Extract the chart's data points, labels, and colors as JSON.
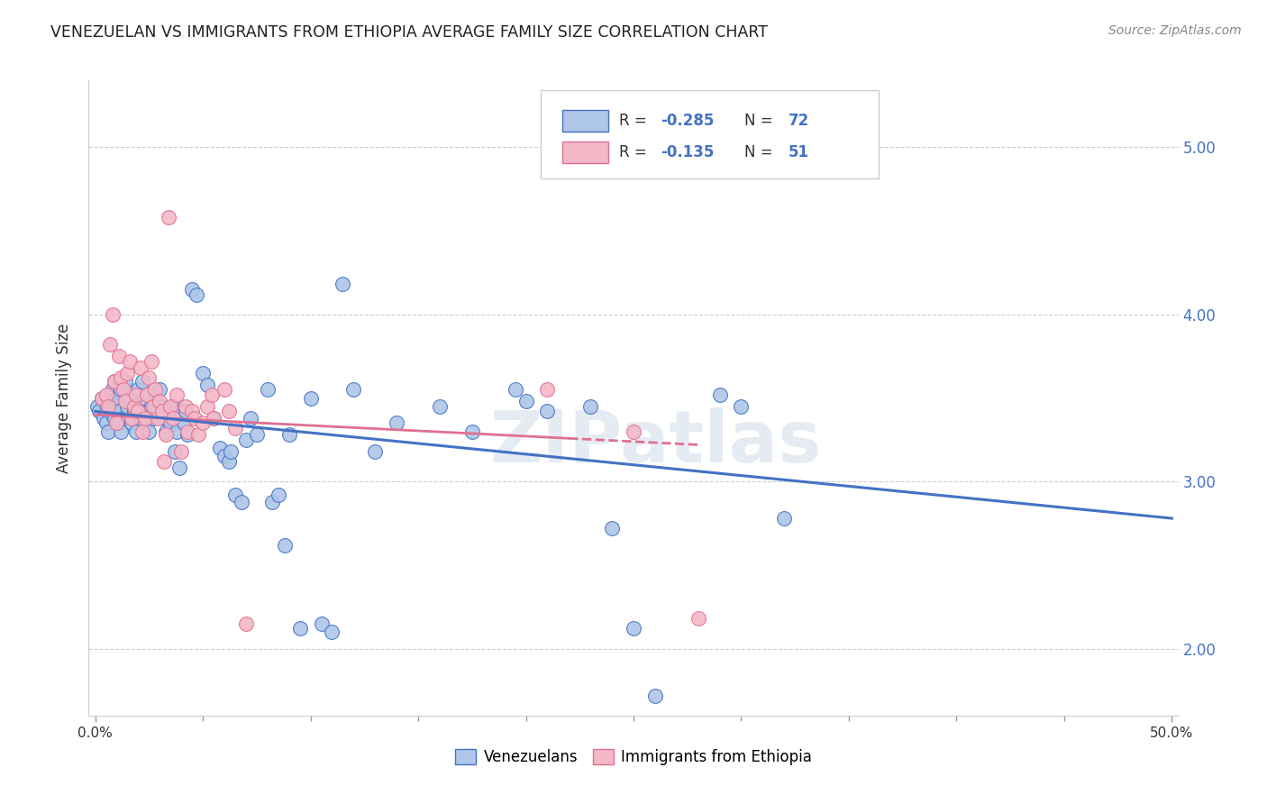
{
  "title": "VENEZUELAN VS IMMIGRANTS FROM ETHIOPIA AVERAGE FAMILY SIZE CORRELATION CHART",
  "source": "Source: ZipAtlas.com",
  "ylabel": "Average Family Size",
  "ylim": [
    1.6,
    5.4
  ],
  "xlim": [
    -0.003,
    0.503
  ],
  "watermark": "ZIPatlas",
  "venezuelan_color": "#aec6e8",
  "ethiopia_color": "#f4b8c8",
  "venezuelan_edge_color": "#4472c4",
  "ethiopia_edge_color": "#e07090",
  "venezuelan_line_color": "#4472c4",
  "ethiopia_line_color": "#e07090",
  "venezuelan_scatter": [
    [
      0.001,
      3.45
    ],
    [
      0.002,
      3.42
    ],
    [
      0.003,
      3.5
    ],
    [
      0.004,
      3.38
    ],
    [
      0.005,
      3.46
    ],
    [
      0.005,
      3.35
    ],
    [
      0.006,
      3.48
    ],
    [
      0.006,
      3.3
    ],
    [
      0.007,
      3.52
    ],
    [
      0.007,
      3.45
    ],
    [
      0.008,
      3.4
    ],
    [
      0.008,
      3.55
    ],
    [
      0.009,
      3.38
    ],
    [
      0.009,
      3.6
    ],
    [
      0.01,
      3.45
    ],
    [
      0.01,
      3.5
    ],
    [
      0.011,
      3.35
    ],
    [
      0.011,
      3.42
    ],
    [
      0.012,
      3.3
    ],
    [
      0.012,
      3.55
    ],
    [
      0.013,
      3.38
    ],
    [
      0.014,
      3.6
    ],
    [
      0.015,
      3.45
    ],
    [
      0.016,
      3.5
    ],
    [
      0.017,
      3.35
    ],
    [
      0.018,
      3.42
    ],
    [
      0.019,
      3.3
    ],
    [
      0.02,
      3.55
    ],
    [
      0.021,
      3.38
    ],
    [
      0.022,
      3.6
    ],
    [
      0.023,
      3.5
    ],
    [
      0.024,
      3.42
    ],
    [
      0.025,
      3.3
    ],
    [
      0.026,
      3.45
    ],
    [
      0.027,
      3.38
    ],
    [
      0.028,
      3.5
    ],
    [
      0.029,
      3.42
    ],
    [
      0.03,
      3.55
    ],
    [
      0.031,
      3.45
    ],
    [
      0.032,
      3.38
    ],
    [
      0.033,
      3.3
    ],
    [
      0.034,
      3.42
    ],
    [
      0.035,
      3.35
    ],
    [
      0.036,
      3.45
    ],
    [
      0.037,
      3.18
    ],
    [
      0.038,
      3.3
    ],
    [
      0.039,
      3.08
    ],
    [
      0.04,
      3.42
    ],
    [
      0.041,
      3.35
    ],
    [
      0.042,
      3.42
    ],
    [
      0.043,
      3.28
    ],
    [
      0.045,
      4.15
    ],
    [
      0.047,
      4.12
    ],
    [
      0.05,
      3.65
    ],
    [
      0.052,
      3.58
    ],
    [
      0.055,
      3.38
    ],
    [
      0.058,
      3.2
    ],
    [
      0.06,
      3.15
    ],
    [
      0.062,
      3.12
    ],
    [
      0.063,
      3.18
    ],
    [
      0.065,
      2.92
    ],
    [
      0.068,
      2.88
    ],
    [
      0.07,
      3.25
    ],
    [
      0.072,
      3.38
    ],
    [
      0.075,
      3.28
    ],
    [
      0.08,
      3.55
    ],
    [
      0.082,
      2.88
    ],
    [
      0.085,
      2.92
    ],
    [
      0.088,
      2.62
    ],
    [
      0.09,
      3.28
    ],
    [
      0.095,
      2.12
    ],
    [
      0.1,
      3.5
    ],
    [
      0.105,
      2.15
    ],
    [
      0.11,
      2.1
    ],
    [
      0.115,
      4.18
    ],
    [
      0.12,
      3.55
    ],
    [
      0.13,
      3.18
    ],
    [
      0.14,
      3.35
    ],
    [
      0.16,
      3.45
    ],
    [
      0.175,
      3.3
    ],
    [
      0.195,
      3.55
    ],
    [
      0.2,
      3.48
    ],
    [
      0.21,
      3.42
    ],
    [
      0.23,
      3.45
    ],
    [
      0.24,
      2.72
    ],
    [
      0.25,
      2.12
    ],
    [
      0.26,
      1.72
    ],
    [
      0.29,
      3.52
    ],
    [
      0.3,
      3.45
    ],
    [
      0.32,
      2.78
    ]
  ],
  "ethiopia_scatter": [
    [
      0.003,
      3.5
    ],
    [
      0.005,
      3.52
    ],
    [
      0.006,
      3.45
    ],
    [
      0.007,
      3.82
    ],
    [
      0.008,
      4.0
    ],
    [
      0.009,
      3.6
    ],
    [
      0.01,
      3.35
    ],
    [
      0.011,
      3.75
    ],
    [
      0.012,
      3.62
    ],
    [
      0.013,
      3.55
    ],
    [
      0.014,
      3.48
    ],
    [
      0.015,
      3.65
    ],
    [
      0.016,
      3.72
    ],
    [
      0.017,
      3.38
    ],
    [
      0.018,
      3.45
    ],
    [
      0.019,
      3.52
    ],
    [
      0.02,
      3.42
    ],
    [
      0.021,
      3.68
    ],
    [
      0.022,
      3.3
    ],
    [
      0.023,
      3.38
    ],
    [
      0.024,
      3.52
    ],
    [
      0.025,
      3.62
    ],
    [
      0.026,
      3.72
    ],
    [
      0.027,
      3.45
    ],
    [
      0.028,
      3.55
    ],
    [
      0.029,
      3.38
    ],
    [
      0.03,
      3.48
    ],
    [
      0.031,
      3.42
    ],
    [
      0.032,
      3.12
    ],
    [
      0.033,
      3.28
    ],
    [
      0.034,
      4.58
    ],
    [
      0.035,
      3.45
    ],
    [
      0.036,
      3.38
    ],
    [
      0.038,
      3.52
    ],
    [
      0.04,
      3.18
    ],
    [
      0.042,
      3.45
    ],
    [
      0.043,
      3.3
    ],
    [
      0.045,
      3.42
    ],
    [
      0.046,
      3.38
    ],
    [
      0.048,
      3.28
    ],
    [
      0.05,
      3.35
    ],
    [
      0.052,
      3.45
    ],
    [
      0.054,
      3.52
    ],
    [
      0.055,
      3.38
    ],
    [
      0.06,
      3.55
    ],
    [
      0.062,
      3.42
    ],
    [
      0.065,
      3.32
    ],
    [
      0.07,
      2.15
    ],
    [
      0.21,
      3.55
    ],
    [
      0.25,
      3.3
    ],
    [
      0.28,
      2.18
    ]
  ],
  "yticks": [
    2.0,
    3.0,
    4.0,
    5.0
  ],
  "xtick_minor_positions": [
    0.05,
    0.1,
    0.15,
    0.2,
    0.25,
    0.3,
    0.35,
    0.4,
    0.45
  ],
  "right_ytick_color": "#4472c4",
  "grid_color": "#cccccc",
  "grid_linestyle": "--"
}
